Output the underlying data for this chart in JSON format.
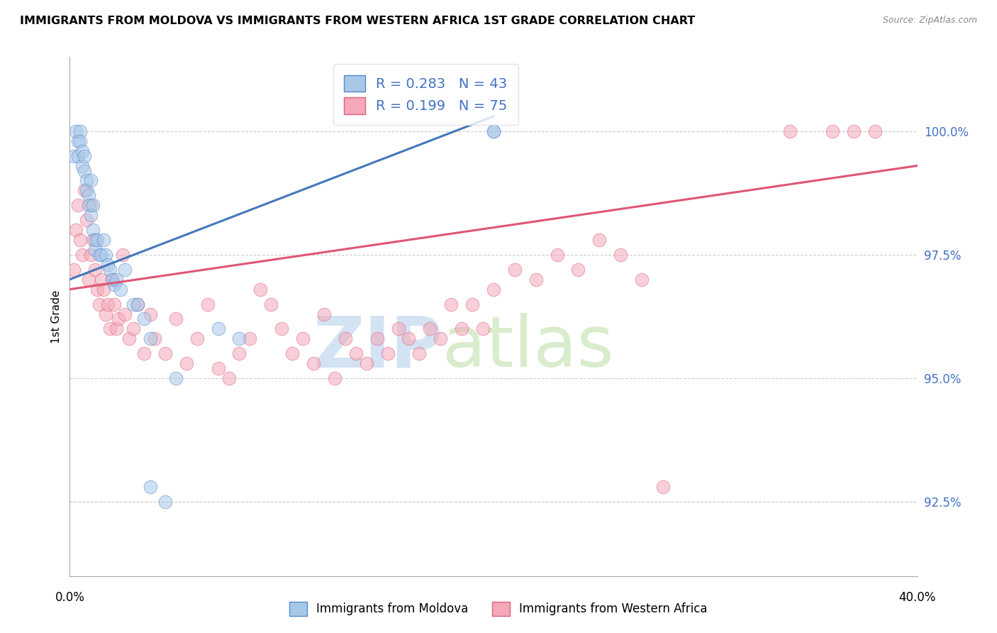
{
  "title": "IMMIGRANTS FROM MOLDOVA VS IMMIGRANTS FROM WESTERN AFRICA 1ST GRADE CORRELATION CHART",
  "source": "Source: ZipAtlas.com",
  "ylabel": "1st Grade",
  "yticks": [
    92.5,
    95.0,
    97.5,
    100.0
  ],
  "ytick_labels": [
    "92.5%",
    "95.0%",
    "97.5%",
    "100.0%"
  ],
  "xlim": [
    0.0,
    40.0
  ],
  "ylim": [
    91.0,
    101.5
  ],
  "blue_R": 0.283,
  "blue_N": 43,
  "pink_R": 0.199,
  "pink_N": 75,
  "legend_label_blue": "Immigrants from Moldova",
  "legend_label_pink": "Immigrants from Western Africa",
  "blue_color": "#a8c8e8",
  "pink_color": "#f4a8b8",
  "blue_edge_color": "#5588cc",
  "pink_edge_color": "#e06080",
  "blue_line_color": "#4477bb",
  "pink_line_color": "#e05575",
  "blue_x": [
    0.2,
    0.3,
    0.4,
    0.4,
    0.5,
    0.5,
    0.6,
    0.6,
    0.7,
    0.7,
    0.8,
    0.8,
    0.9,
    0.9,
    1.0,
    1.0,
    1.1,
    1.1,
    1.2,
    1.2,
    1.3,
    1.4,
    1.5,
    1.6,
    1.7,
    1.8,
    1.9,
    2.0,
    2.1,
    2.2,
    2.4,
    2.6,
    3.0,
    3.2,
    3.5,
    3.8,
    3.8,
    4.5,
    5.0,
    7.0,
    8.0,
    20.0,
    20.0
  ],
  "blue_y": [
    99.5,
    100.0,
    99.8,
    99.5,
    100.0,
    99.8,
    99.6,
    99.3,
    99.5,
    99.2,
    99.0,
    98.8,
    98.7,
    98.5,
    99.0,
    98.3,
    98.5,
    98.0,
    97.8,
    97.6,
    97.8,
    97.5,
    97.5,
    97.8,
    97.5,
    97.3,
    97.2,
    97.0,
    96.9,
    97.0,
    96.8,
    97.2,
    96.5,
    96.5,
    96.2,
    95.8,
    92.8,
    92.5,
    95.0,
    96.0,
    95.8,
    100.0,
    100.0
  ],
  "pink_x": [
    0.2,
    0.3,
    0.4,
    0.5,
    0.6,
    0.7,
    0.8,
    0.9,
    1.0,
    1.0,
    1.1,
    1.2,
    1.3,
    1.4,
    1.5,
    1.6,
    1.7,
    1.8,
    1.9,
    2.0,
    2.1,
    2.2,
    2.3,
    2.5,
    2.6,
    2.8,
    3.0,
    3.2,
    3.5,
    3.8,
    4.0,
    4.5,
    5.0,
    5.5,
    6.0,
    6.5,
    7.0,
    7.5,
    8.0,
    8.5,
    9.0,
    9.5,
    10.0,
    10.5,
    11.0,
    11.5,
    12.0,
    12.5,
    13.0,
    13.5,
    14.0,
    14.5,
    15.0,
    15.5,
    16.0,
    16.5,
    17.0,
    17.5,
    18.0,
    18.5,
    19.0,
    19.5,
    20.0,
    21.0,
    22.0,
    23.0,
    24.0,
    25.0,
    26.0,
    27.0,
    28.0,
    34.0,
    36.0,
    37.0,
    38.0
  ],
  "pink_y": [
    97.2,
    98.0,
    98.5,
    97.8,
    97.5,
    98.8,
    98.2,
    97.0,
    98.5,
    97.5,
    97.8,
    97.2,
    96.8,
    96.5,
    97.0,
    96.8,
    96.3,
    96.5,
    96.0,
    97.0,
    96.5,
    96.0,
    96.2,
    97.5,
    96.3,
    95.8,
    96.0,
    96.5,
    95.5,
    96.3,
    95.8,
    95.5,
    96.2,
    95.3,
    95.8,
    96.5,
    95.2,
    95.0,
    95.5,
    95.8,
    96.8,
    96.5,
    96.0,
    95.5,
    95.8,
    95.3,
    96.3,
    95.0,
    95.8,
    95.5,
    95.3,
    95.8,
    95.5,
    96.0,
    95.8,
    95.5,
    96.0,
    95.8,
    96.5,
    96.0,
    96.5,
    96.0,
    96.8,
    97.2,
    97.0,
    97.5,
    97.2,
    97.8,
    97.5,
    97.0,
    92.8,
    100.0,
    100.0,
    100.0,
    100.0
  ],
  "blue_trend_x": [
    0.0,
    20.0
  ],
  "blue_trend_y": [
    97.0,
    100.3
  ],
  "pink_trend_x": [
    0.0,
    40.0
  ],
  "pink_trend_y": [
    96.8,
    99.3
  ]
}
